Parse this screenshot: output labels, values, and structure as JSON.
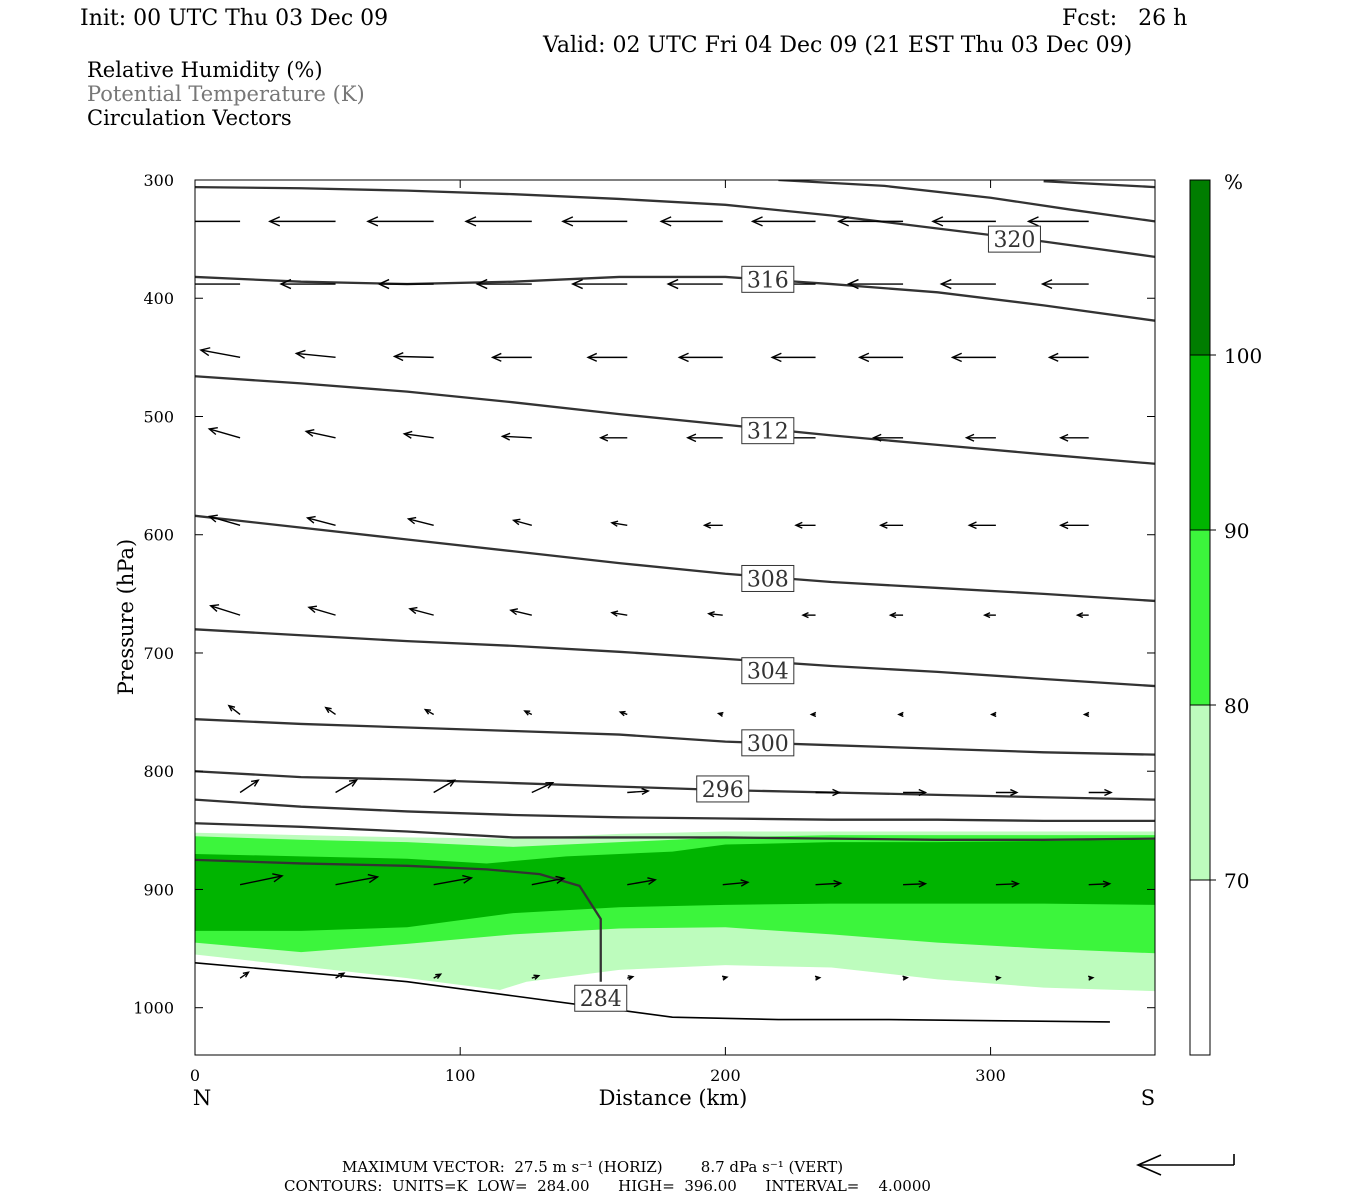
{
  "header": {
    "init": "Init: 00 UTC Thu 03 Dec 09",
    "fcst": "Fcst:   26 h",
    "valid": "Valid: 02 UTC Fri 04 Dec 09 (21 EST Thu 03 Dec 09)",
    "legend_rh": "Relative Humidity (%)",
    "legend_theta": "Potential Temperature (K)",
    "legend_vectors": "Circulation Vectors"
  },
  "colors": {
    "rh_70_80": "#bdfcbd",
    "rh_80_90": "#3cf53c",
    "rh_90_100": "#00b400",
    "rh_100": "#007d00",
    "contour": "#333333",
    "vector": "#000000"
  },
  "chart_data": {
    "type": "cross-section",
    "xlabel": "Distance (km)",
    "ylabel": "Pressure (hPa)",
    "x_ticks": [
      0,
      100,
      200,
      300
    ],
    "y_ticks": [
      300,
      400,
      500,
      600,
      700,
      800,
      900,
      1000
    ],
    "xlim": [
      0,
      362
    ],
    "ylim": [
      300,
      1040
    ],
    "left_end_label": "N",
    "right_end_label": "S",
    "colorbar": {
      "unit": "%",
      "levels": [
        70,
        80,
        90,
        100
      ],
      "level_labels": [
        "70",
        "80",
        "90",
        "100"
      ]
    },
    "rh_fill_bands": [
      {
        "level": 70,
        "top": [
          [
            0,
            852
          ],
          [
            40,
            854
          ],
          [
            80,
            856
          ],
          [
            120,
            857
          ],
          [
            160,
            853
          ],
          [
            200,
            851
          ],
          [
            240,
            851
          ],
          [
            280,
            851
          ],
          [
            320,
            851
          ],
          [
            362,
            851
          ]
        ],
        "bottom": [
          [
            0,
            955
          ],
          [
            40,
            965
          ],
          [
            80,
            975
          ],
          [
            115,
            985
          ],
          [
            125,
            978
          ],
          [
            160,
            968
          ],
          [
            200,
            964
          ],
          [
            240,
            966
          ],
          [
            280,
            976
          ],
          [
            320,
            983
          ],
          [
            362,
            986
          ]
        ]
      },
      {
        "level": 80,
        "top": [
          [
            0,
            855
          ],
          [
            40,
            858
          ],
          [
            80,
            860
          ],
          [
            120,
            864
          ],
          [
            160,
            860
          ],
          [
            200,
            856
          ],
          [
            240,
            854
          ],
          [
            280,
            854
          ],
          [
            320,
            854
          ],
          [
            362,
            854
          ]
        ],
        "bottom": [
          [
            0,
            945
          ],
          [
            40,
            953
          ],
          [
            80,
            946
          ],
          [
            120,
            938
          ],
          [
            160,
            933
          ],
          [
            200,
            932
          ],
          [
            240,
            938
          ],
          [
            280,
            945
          ],
          [
            320,
            950
          ],
          [
            362,
            954
          ]
        ]
      },
      {
        "level": 90,
        "top": [
          [
            0,
            870
          ],
          [
            40,
            872
          ],
          [
            80,
            874
          ],
          [
            110,
            878
          ],
          [
            140,
            872
          ],
          [
            180,
            868
          ],
          [
            200,
            862
          ],
          [
            240,
            860
          ],
          [
            280,
            860
          ],
          [
            320,
            859
          ],
          [
            362,
            858
          ]
        ],
        "bottom": [
          [
            0,
            935
          ],
          [
            40,
            935
          ],
          [
            80,
            932
          ],
          [
            120,
            920
          ],
          [
            160,
            915
          ],
          [
            200,
            913
          ],
          [
            240,
            912
          ],
          [
            280,
            912
          ],
          [
            320,
            912
          ],
          [
            362,
            913
          ]
        ]
      }
    ],
    "theta_contours": [
      {
        "value": "284",
        "points": [
          [
            0,
            875
          ],
          [
            40,
            878
          ],
          [
            80,
            880
          ],
          [
            110,
            883
          ],
          [
            130,
            887
          ],
          [
            145,
            897
          ],
          [
            153,
            925
          ],
          [
            153,
            978
          ]
        ],
        "label_at": [
          153,
          992
        ]
      },
      {
        "value": "288",
        "points": [
          [
            0,
            844
          ],
          [
            40,
            847
          ],
          [
            80,
            851
          ],
          [
            120,
            856
          ],
          [
            160,
            856
          ],
          [
            200,
            856
          ],
          [
            240,
            857
          ],
          [
            280,
            858
          ],
          [
            320,
            858
          ],
          [
            362,
            857
          ]
        ]
      },
      {
        "value": "292",
        "points": [
          [
            0,
            824
          ],
          [
            40,
            830
          ],
          [
            80,
            834
          ],
          [
            120,
            837
          ],
          [
            160,
            839
          ],
          [
            200,
            840
          ],
          [
            240,
            841
          ],
          [
            280,
            841
          ],
          [
            320,
            842
          ],
          [
            362,
            842
          ]
        ]
      },
      {
        "value": "296",
        "points": [
          [
            0,
            800
          ],
          [
            40,
            805
          ],
          [
            80,
            807
          ],
          [
            120,
            810
          ],
          [
            160,
            813
          ],
          [
            200,
            816
          ],
          [
            240,
            818
          ],
          [
            280,
            820
          ],
          [
            320,
            822
          ],
          [
            362,
            824
          ]
        ],
        "label_at": [
          199,
          815
        ]
      },
      {
        "value": "300",
        "points": [
          [
            0,
            756
          ],
          [
            40,
            760
          ],
          [
            80,
            763
          ],
          [
            120,
            766
          ],
          [
            160,
            769
          ],
          [
            200,
            775
          ],
          [
            240,
            778
          ],
          [
            280,
            781
          ],
          [
            320,
            784
          ],
          [
            362,
            786
          ]
        ],
        "label_at": [
          216,
          776
        ]
      },
      {
        "value": "304",
        "points": [
          [
            0,
            680
          ],
          [
            40,
            685
          ],
          [
            80,
            690
          ],
          [
            120,
            694
          ],
          [
            160,
            699
          ],
          [
            200,
            705
          ],
          [
            240,
            711
          ],
          [
            280,
            716
          ],
          [
            320,
            722
          ],
          [
            362,
            728
          ]
        ],
        "label_at": [
          216,
          715
        ]
      },
      {
        "value": "308",
        "points": [
          [
            0,
            584
          ],
          [
            40,
            594
          ],
          [
            80,
            604
          ],
          [
            120,
            614
          ],
          [
            160,
            624
          ],
          [
            200,
            633
          ],
          [
            240,
            640
          ],
          [
            280,
            645
          ],
          [
            320,
            650
          ],
          [
            362,
            656
          ]
        ],
        "label_at": [
          216,
          637
        ]
      },
      {
        "value": "312",
        "points": [
          [
            0,
            466
          ],
          [
            40,
            472
          ],
          [
            80,
            479
          ],
          [
            120,
            488
          ],
          [
            160,
            498
          ],
          [
            200,
            507
          ],
          [
            240,
            516
          ],
          [
            280,
            524
          ],
          [
            320,
            532
          ],
          [
            362,
            540
          ]
        ],
        "label_at": [
          216,
          512
        ]
      },
      {
        "value": "316",
        "points": [
          [
            0,
            382
          ],
          [
            40,
            386
          ],
          [
            80,
            388
          ],
          [
            120,
            386
          ],
          [
            160,
            382
          ],
          [
            200,
            382
          ],
          [
            240,
            388
          ],
          [
            280,
            395
          ],
          [
            320,
            406
          ],
          [
            362,
            419
          ]
        ],
        "label_at": [
          216,
          384
        ]
      },
      {
        "value": "320",
        "points": [
          [
            0,
            306
          ],
          [
            40,
            307
          ],
          [
            80,
            309
          ],
          [
            120,
            312
          ],
          [
            160,
            316
          ],
          [
            200,
            321
          ],
          [
            240,
            330
          ],
          [
            280,
            341
          ],
          [
            320,
            352
          ],
          [
            362,
            365
          ]
        ],
        "label_at": [
          309,
          350
        ]
      },
      {
        "value": "324",
        "points": [
          [
            220,
            300
          ],
          [
            260,
            305
          ],
          [
            300,
            315
          ],
          [
            330,
            325
          ],
          [
            362,
            335
          ]
        ]
      },
      {
        "value": "328",
        "points": [
          [
            320,
            301
          ],
          [
            362,
            306
          ]
        ]
      }
    ],
    "vectors": [
      {
        "p": 335,
        "xs": [
          17,
          53,
          90,
          127,
          163,
          199,
          234,
          267,
          302,
          337
        ],
        "u": [
          -4.7,
          -4.7,
          -4.7,
          -4.7,
          -4.6,
          -4.4,
          -4.5,
          -4.6,
          -4.5,
          -4.3
        ],
        "w": [
          0,
          0,
          0,
          0,
          0,
          0,
          0,
          0,
          0,
          0
        ]
      },
      {
        "p": 388,
        "xs": [
          17,
          53,
          90,
          127,
          163,
          199,
          234,
          267,
          302,
          337
        ],
        "u": [
          -3.9,
          -3.9,
          -3.9,
          -3.9,
          -3.9,
          -3.9,
          -3.9,
          -3.9,
          -3.9,
          -3.3
        ],
        "w": [
          0,
          0,
          0,
          0,
          0,
          0,
          0,
          0,
          0,
          0
        ]
      },
      {
        "p": 450,
        "xs": [
          17,
          53,
          90,
          127,
          163,
          199,
          234,
          267,
          302,
          337
        ],
        "u": [
          -2.8,
          -2.8,
          -2.8,
          -2.8,
          -2.8,
          -3.1,
          -3.1,
          -3.1,
          -3.1,
          -2.8
        ],
        "w": [
          1.5,
          0.8,
          0.2,
          0,
          0,
          0,
          0,
          0,
          0,
          0
        ]
      },
      {
        "p": 518,
        "xs": [
          17,
          53,
          90,
          127,
          163,
          199,
          234,
          267,
          302,
          337
        ],
        "u": [
          -2.2,
          -2.1,
          -2.1,
          -2.1,
          -1.9,
          -2.5,
          -2.2,
          -2.1,
          -2.1,
          -2.0
        ],
        "w": [
          1.8,
          1.3,
          0.8,
          0.3,
          0,
          0,
          0,
          0,
          0,
          0
        ]
      },
      {
        "p": 592,
        "xs": [
          17,
          53,
          90,
          127,
          163,
          199,
          234,
          267,
          302,
          337
        ],
        "u": [
          -2.2,
          -2.0,
          -1.8,
          -1.3,
          -1.1,
          -1.3,
          -1.4,
          -1.6,
          -1.9,
          -2.0
        ],
        "w": [
          1.8,
          1.5,
          1.3,
          1.0,
          0.5,
          0,
          0,
          0,
          0,
          0
        ]
      },
      {
        "p": 668,
        "xs": [
          17,
          53,
          90,
          127,
          163,
          199,
          234,
          267,
          302,
          337
        ],
        "u": [
          -2.1,
          -1.9,
          -1.7,
          -1.5,
          -1.1,
          -1.0,
          -0.9,
          -0.9,
          -0.8,
          -0.8
        ],
        "w": [
          1.9,
          1.6,
          1.3,
          1.0,
          0.5,
          0.3,
          0,
          0,
          0,
          0
        ]
      },
      {
        "p": 752,
        "xs": [
          17,
          53,
          90,
          127,
          163,
          199,
          234,
          267,
          302,
          337
        ],
        "u": [
          -0.8,
          -0.7,
          -0.6,
          -0.5,
          -0.5,
          -0.3,
          -0.3,
          -0.3,
          -0.3,
          -0.3
        ],
        "w": [
          1.8,
          1.4,
          1.0,
          0.7,
          0.5,
          0.2,
          0,
          0,
          0,
          0
        ]
      },
      {
        "p": 818,
        "xs": [
          17,
          53,
          90,
          127,
          163,
          199,
          234,
          267,
          302,
          337
        ],
        "u": [
          1.3,
          1.5,
          1.5,
          1.5,
          1.5,
          1.7,
          1.7,
          1.6,
          1.5,
          1.6
        ],
        "w": [
          2.5,
          2.5,
          2.5,
          2.0,
          0.3,
          0,
          0,
          0,
          0,
          0
        ]
      },
      {
        "p": 896,
        "xs": [
          17,
          53,
          90,
          127,
          163,
          199,
          234,
          267,
          302,
          337
        ],
        "u": [
          3.0,
          3.0,
          2.7,
          2.3,
          2.0,
          1.8,
          1.8,
          1.6,
          1.6,
          1.5
        ],
        "w": [
          1.8,
          1.6,
          1.4,
          1.3,
          1.0,
          0.5,
          0.3,
          0.2,
          0.2,
          0.2
        ]
      },
      {
        "p": 975,
        "xs": [
          17,
          53,
          90,
          127,
          163,
          199,
          234,
          267,
          302,
          337
        ],
        "u": [
          0.6,
          0.6,
          0.5,
          0.5,
          0.4,
          0.3,
          0.3,
          0.3,
          0.3,
          0.3
        ],
        "w": [
          1.2,
          1.0,
          0.8,
          0.5,
          0.3,
          0.2,
          0.1,
          0.1,
          0.1,
          0.1
        ]
      }
    ]
  },
  "footer": {
    "max_vector": "MAXIMUM VECTOR:  27.5 m s⁻¹ (HORIZ)        8.7 dPa s⁻¹ (VERT)",
    "contours": "CONTOURS:  UNITS=K  LOW=  284.00      HIGH=  396.00      INTERVAL=    4.0000"
  }
}
